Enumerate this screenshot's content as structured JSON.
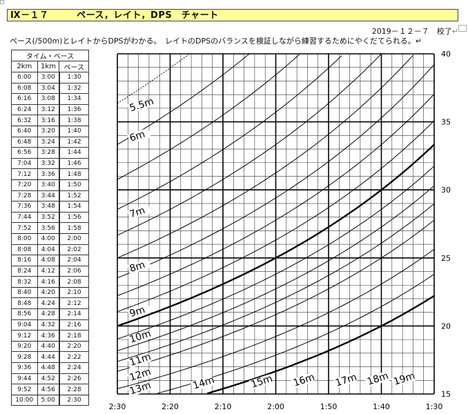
{
  "header": {
    "title": "Ⅸ－１７　　　ペース，レイト，DPS　チャート",
    "return_mark": "↵",
    "date": "2019－１２－７　校了",
    "description": "ペース(/500m)とレイトからDPSがわかる。　レイトのDPSのバランスを検証しながら練習するためにやくだてられる。↵"
  },
  "table": {
    "title": "タイム・ペース",
    "columns": [
      "2km",
      "1km",
      "ペース"
    ],
    "rows": [
      [
        "6:00",
        "3:00",
        "1:30"
      ],
      [
        "6:08",
        "3:04",
        "1:32"
      ],
      [
        "6:16",
        "3:08",
        "1:34"
      ],
      [
        "6:24",
        "3:12",
        "1:36"
      ],
      [
        "6:32",
        "3:16",
        "1:38"
      ],
      [
        "6:40",
        "3:20",
        "1:40"
      ],
      [
        "6:48",
        "3:24",
        "1:42"
      ],
      [
        "6:56",
        "3:28",
        "1:44"
      ],
      [
        "7:04",
        "3:32",
        "1:46"
      ],
      [
        "7:12",
        "3:36",
        "1:48"
      ],
      [
        "7:20",
        "3:40",
        "1:50"
      ],
      [
        "7:28",
        "3:44",
        "1:52"
      ],
      [
        "7:36",
        "3:48",
        "1:54"
      ],
      [
        "7:44",
        "3:52",
        "1:56"
      ],
      [
        "7:52",
        "3:56",
        "1:58"
      ],
      [
        "8:00",
        "4:00",
        "2:00"
      ],
      [
        "8:08",
        "4:04",
        "2:02"
      ],
      [
        "8:16",
        "4:08",
        "2:04"
      ],
      [
        "8:24",
        "4:12",
        "2:06"
      ],
      [
        "8:32",
        "4:16",
        "2:08"
      ],
      [
        "8:40",
        "4:20",
        "2:10"
      ],
      [
        "8:48",
        "4:24",
        "2:12"
      ],
      [
        "8:56",
        "4:28",
        "2:14"
      ],
      [
        "9:04",
        "4:32",
        "2:16"
      ],
      [
        "9:12",
        "4:36",
        "2:18"
      ],
      [
        "9:20",
        "4:40",
        "2:20"
      ],
      [
        "9:28",
        "4:44",
        "2:22"
      ],
      [
        "9:36",
        "4:48",
        "2:24"
      ],
      [
        "9:44",
        "4:52",
        "2:26"
      ],
      [
        "9:52",
        "4:56",
        "2:28"
      ],
      [
        "10:00",
        "5:00",
        "2:30"
      ]
    ]
  },
  "chart_data": {
    "type": "line",
    "x_tick_labels": [
      "2:30",
      "2:20",
      "2:10",
      "2:00",
      "1:50",
      "1:40",
      "1:30"
    ],
    "y_tick_labels": [
      "15",
      "20",
      "25",
      "30",
      "35",
      "40"
    ],
    "x_range_pace_seconds": [
      150,
      90
    ],
    "y_range_rate": [
      15,
      40
    ],
    "series": [
      {
        "name": "5.5m",
        "dps": 5.5,
        "style": "dotted"
      },
      {
        "name": "6m",
        "dps": 6,
        "style": "thin"
      },
      {
        "name": "6.5m",
        "dps": 6.5,
        "style": "thin"
      },
      {
        "name": "7m",
        "dps": 7,
        "style": "thin"
      },
      {
        "name": "7.5m",
        "dps": 7.5,
        "style": "thin"
      },
      {
        "name": "8m",
        "dps": 8,
        "style": "thin"
      },
      {
        "name": "8.5m",
        "dps": 8.5,
        "style": "thin"
      },
      {
        "name": "9m",
        "dps": 9,
        "style": "thin"
      },
      {
        "name": "9.5m",
        "dps": 9.5,
        "style": "thin"
      },
      {
        "name": "10m",
        "dps": 10,
        "style": "thick"
      },
      {
        "name": "10.5m",
        "dps": 10.5,
        "style": "thin"
      },
      {
        "name": "11m",
        "dps": 11,
        "style": "thin"
      },
      {
        "name": "11.5m",
        "dps": 11.5,
        "style": "thin"
      },
      {
        "name": "12m",
        "dps": 12,
        "style": "thin"
      },
      {
        "name": "13m",
        "dps": 13,
        "style": "thin"
      },
      {
        "name": "14m",
        "dps": 14,
        "style": "thin"
      },
      {
        "name": "15m",
        "dps": 15,
        "style": "thick"
      }
    ],
    "labels": [
      {
        "text": "5.5m",
        "rate": 36.0,
        "pace": 146
      },
      {
        "text": "6m",
        "rate": 33.8,
        "pace": 146
      },
      {
        "text": "7m",
        "rate": 28.2,
        "pace": 146
      },
      {
        "text": "8m",
        "rate": 24.2,
        "pace": 146
      },
      {
        "text": "9m",
        "rate": 20.9,
        "pace": 146
      },
      {
        "text": "10m",
        "rate": 19.0,
        "pace": 146
      },
      {
        "text": "11m",
        "rate": 17.3,
        "pace": 146
      },
      {
        "text": "12m",
        "rate": 16.2,
        "pace": 146
      },
      {
        "text": "13m",
        "rate": 15.2,
        "pace": 146
      },
      {
        "text": "14m",
        "rate": 15.6,
        "pace": 134
      },
      {
        "text": "15m",
        "rate": 15.7,
        "pace": 123
      },
      {
        "text": "16m",
        "rate": 15.8,
        "pace": 115
      },
      {
        "text": "17m",
        "rate": 15.8,
        "pace": 107
      },
      {
        "text": "18m",
        "rate": 15.9,
        "pace": 101
      },
      {
        "text": "19m",
        "rate": 15.9,
        "pace": 96
      }
    ]
  }
}
